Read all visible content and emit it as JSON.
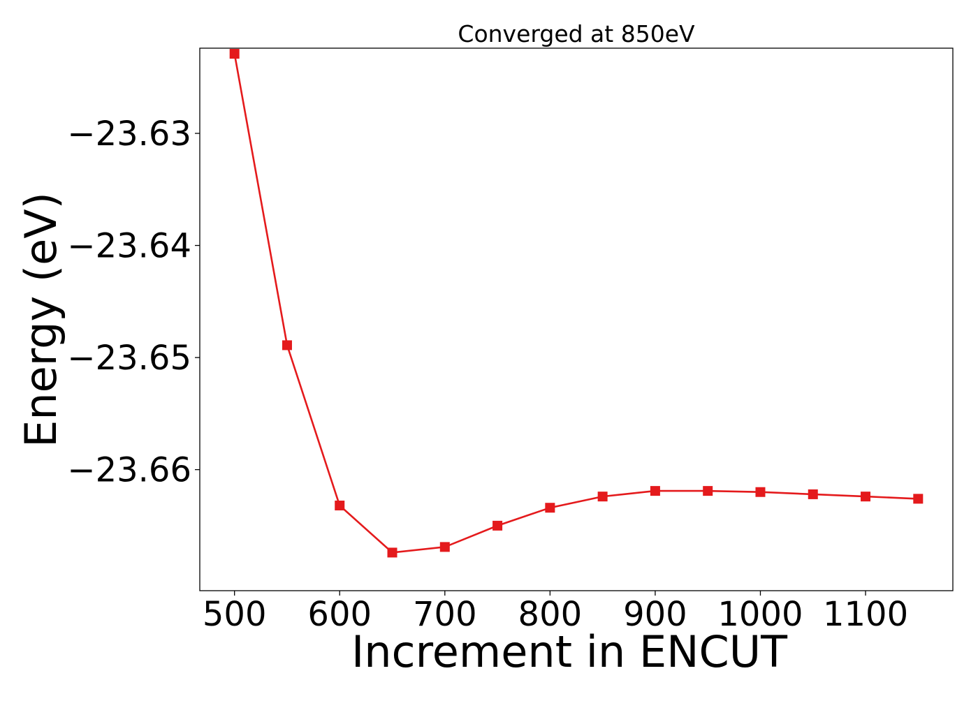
{
  "chart_data": {
    "type": "line",
    "title": "Converged at 850eV",
    "xlabel": "Increment in ENCUT",
    "ylabel": "Energy (eV)",
    "xlim": [
      467,
      1183
    ],
    "ylim": [
      -23.6708,
      -23.6224
    ],
    "xticks": [
      500,
      600,
      700,
      800,
      900,
      1000,
      1100
    ],
    "xtick_labels": [
      "500",
      "600",
      "700",
      "800",
      "900",
      "1000",
      "1100"
    ],
    "yticks": [
      -23.63,
      -23.64,
      -23.65,
      -23.66
    ],
    "ytick_labels": [
      "−23.63",
      "−23.64",
      "−23.65",
      "−23.66"
    ],
    "grid": false,
    "series": [
      {
        "color": "#e41a1c",
        "marker": "square",
        "x": [
          500,
          550,
          600,
          650,
          700,
          750,
          800,
          850,
          900,
          950,
          1000,
          1050,
          1100,
          1150
        ],
        "y": [
          -23.6229,
          -23.6489,
          -23.6632,
          -23.6674,
          -23.6669,
          -23.665,
          -23.6634,
          -23.6624,
          -23.6619,
          -23.6619,
          -23.662,
          -23.6622,
          -23.6624,
          -23.6626
        ]
      }
    ]
  }
}
